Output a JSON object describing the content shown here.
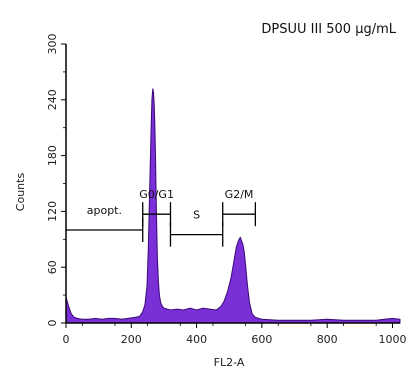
{
  "chart_data": {
    "type": "area",
    "title": "DPSUU III 500 μg/mL",
    "xlabel": "FL2-A",
    "ylabel": "Counts",
    "xlim": [
      0,
      1023
    ],
    "ylim": [
      0,
      300
    ],
    "x_ticks": [
      0,
      200,
      400,
      600,
      800,
      1000
    ],
    "y_ticks": [
      0,
      60,
      120,
      180,
      240,
      300
    ],
    "grid": false,
    "legend": "none",
    "fill_color": "#7b2fd6",
    "line_color": "#3a0a7a",
    "series": [
      {
        "x": [
          0,
          8,
          16,
          25,
          35,
          50,
          70,
          90,
          110,
          130,
          150,
          170,
          190,
          210,
          225,
          235,
          242,
          248,
          252,
          256,
          260,
          263,
          266,
          268,
          270,
          272,
          274,
          276,
          278,
          280,
          283,
          286,
          290,
          295,
          300,
          310,
          320,
          340,
          360,
          380,
          400,
          420,
          440,
          460,
          475,
          485,
          495,
          505,
          512,
          518,
          522,
          526,
          530,
          534,
          538,
          542,
          546,
          550,
          556,
          562,
          570,
          580,
          600,
          650,
          700,
          750,
          800,
          850,
          900,
          950,
          1000,
          1023
        ],
        "y": [
          28,
          18,
          10,
          6,
          5,
          4,
          4,
          5,
          4,
          5,
          5,
          4,
          5,
          6,
          7,
          12,
          20,
          40,
          80,
          140,
          200,
          240,
          252,
          248,
          235,
          215,
          180,
          140,
          100,
          70,
          45,
          30,
          22,
          18,
          16,
          15,
          14,
          15,
          14,
          16,
          14,
          16,
          15,
          14,
          18,
          24,
          34,
          48,
          62,
          74,
          82,
          86,
          90,
          92,
          88,
          84,
          76,
          62,
          40,
          22,
          10,
          6,
          4,
          3,
          3,
          3,
          4,
          3,
          3,
          3,
          5,
          4
        ]
      }
    ],
    "gates": [
      {
        "label": "apopt.",
        "x1": 0,
        "x2": 235,
        "y": 100
      },
      {
        "label": "G0/G1",
        "x1": 235,
        "x2": 320,
        "y": 117
      },
      {
        "label": "S",
        "x1": 320,
        "x2": 480,
        "y": 95
      },
      {
        "label": "G2/M",
        "x1": 480,
        "x2": 580,
        "y": 117
      }
    ]
  }
}
